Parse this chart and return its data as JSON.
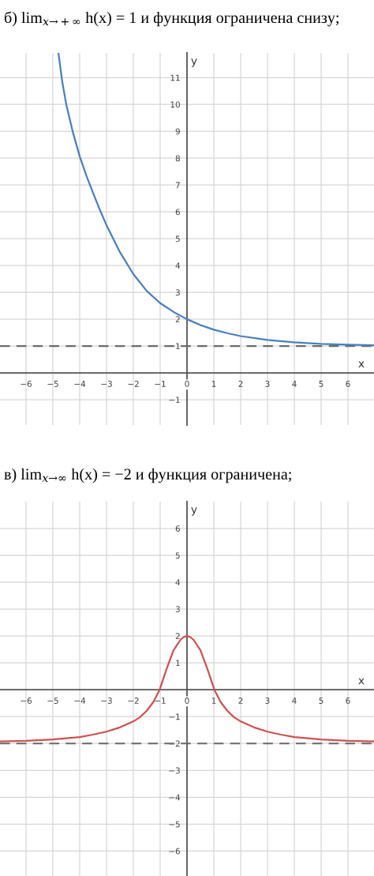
{
  "chart_data": [
    {
      "type": "line",
      "title": "б) lim$_{x→+∞}$ h(x) = 1 и функция ограничена снизу;",
      "xlabel": "x",
      "ylabel": "y",
      "x": [
        -4.79,
        -4.65,
        -4.5,
        -4.25,
        -4,
        -3.75,
        -3.5,
        -3.25,
        -3,
        -2.5,
        -2,
        -1.5,
        -1,
        -0.5,
        0,
        0.5,
        1,
        1.5,
        2,
        3,
        4,
        5,
        6,
        6.97
      ],
      "series": [
        {
          "color": "#4a7ebf",
          "values": [
            11.9,
            10.85,
            10.0,
            8.95,
            8.07,
            7.35,
            6.7,
            6.08,
            5.5,
            4.5,
            3.68,
            3.05,
            2.6,
            2.27,
            2,
            1.78,
            1.61,
            1.48,
            1.37,
            1.23,
            1.14,
            1.08,
            1.05,
            1.03
          ]
        }
      ],
      "xlim": [
        -6.97,
        6.97
      ],
      "ylim": [
        -1.94,
        11.92
      ],
      "xticks": [
        -6,
        -5,
        -4,
        -3,
        -2,
        -1,
        0,
        1,
        2,
        3,
        4,
        5,
        6
      ],
      "yticks": [
        -1,
        1,
        2,
        3,
        4,
        5,
        6,
        7,
        8,
        9,
        10,
        11
      ],
      "ref_lines": [
        {
          "axis": "y",
          "value": 1,
          "color": "#6b6b6b",
          "line_style": "dashed"
        }
      ],
      "grid": true
    },
    {
      "type": "line",
      "title": "в) lim$_{x→∞}$ h(x) = −2 и функция ограничена;",
      "xlabel": "x",
      "ylabel": "y",
      "x": [
        -6.97,
        -6,
        -5,
        -4,
        -3.5,
        -3,
        -2.5,
        -2,
        -1.75,
        -1.5,
        -1.25,
        -1.02,
        -0.75,
        -0.5,
        -0.25,
        -0.125,
        0,
        0.125,
        0.25,
        0.5,
        0.75,
        1.02,
        1.25,
        1.5,
        1.75,
        2,
        2.5,
        3,
        3.5,
        4,
        5,
        6,
        6.97
      ],
      "series": [
        {
          "color": "#d05050",
          "values": [
            -1.92,
            -1.9,
            -1.85,
            -1.76,
            -1.67,
            -1.56,
            -1.4,
            -1.18,
            -1.02,
            -0.78,
            -0.45,
            0,
            0.8,
            1.47,
            1.85,
            1.96,
            2,
            1.96,
            1.85,
            1.47,
            0.8,
            0,
            -0.45,
            -0.78,
            -1.02,
            -1.18,
            -1.4,
            -1.56,
            -1.67,
            -1.76,
            -1.85,
            -1.9,
            -1.92
          ]
        }
      ],
      "xlim": [
        -6.97,
        6.97
      ],
      "ylim": [
        -6.93,
        7.0
      ],
      "xticks": [
        -6,
        -5,
        -4,
        -3,
        -2,
        -1,
        0,
        1,
        2,
        3,
        4,
        5,
        6
      ],
      "yticks": [
        -6,
        -5,
        -4,
        -3,
        -2,
        -1,
        1,
        2,
        3,
        4,
        5,
        6
      ],
      "ref_lines": [
        {
          "axis": "y",
          "value": -2,
          "color": "#6b6b6b",
          "line_style": "dashed"
        }
      ],
      "grid": true
    }
  ]
}
